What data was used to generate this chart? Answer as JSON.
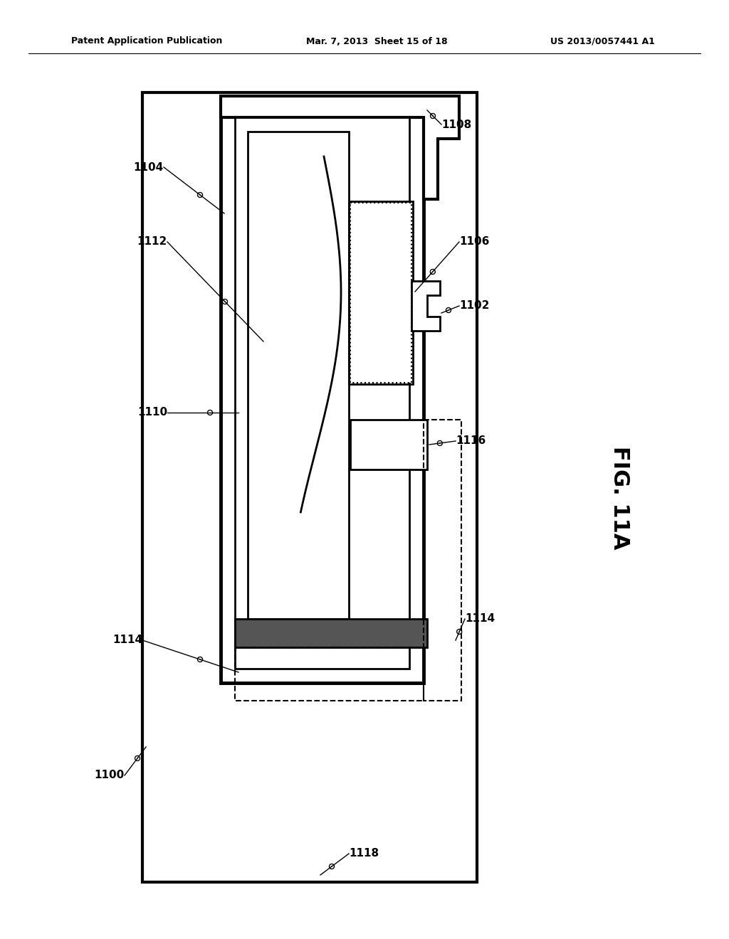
{
  "title_left": "Patent Application Publication",
  "title_middle": "Mar. 7, 2013  Sheet 15 of 18",
  "title_right": "US 2013/0057441 A1",
  "fig_label": "FIG. 11A",
  "background_color": "#ffffff",
  "line_color": "#000000"
}
